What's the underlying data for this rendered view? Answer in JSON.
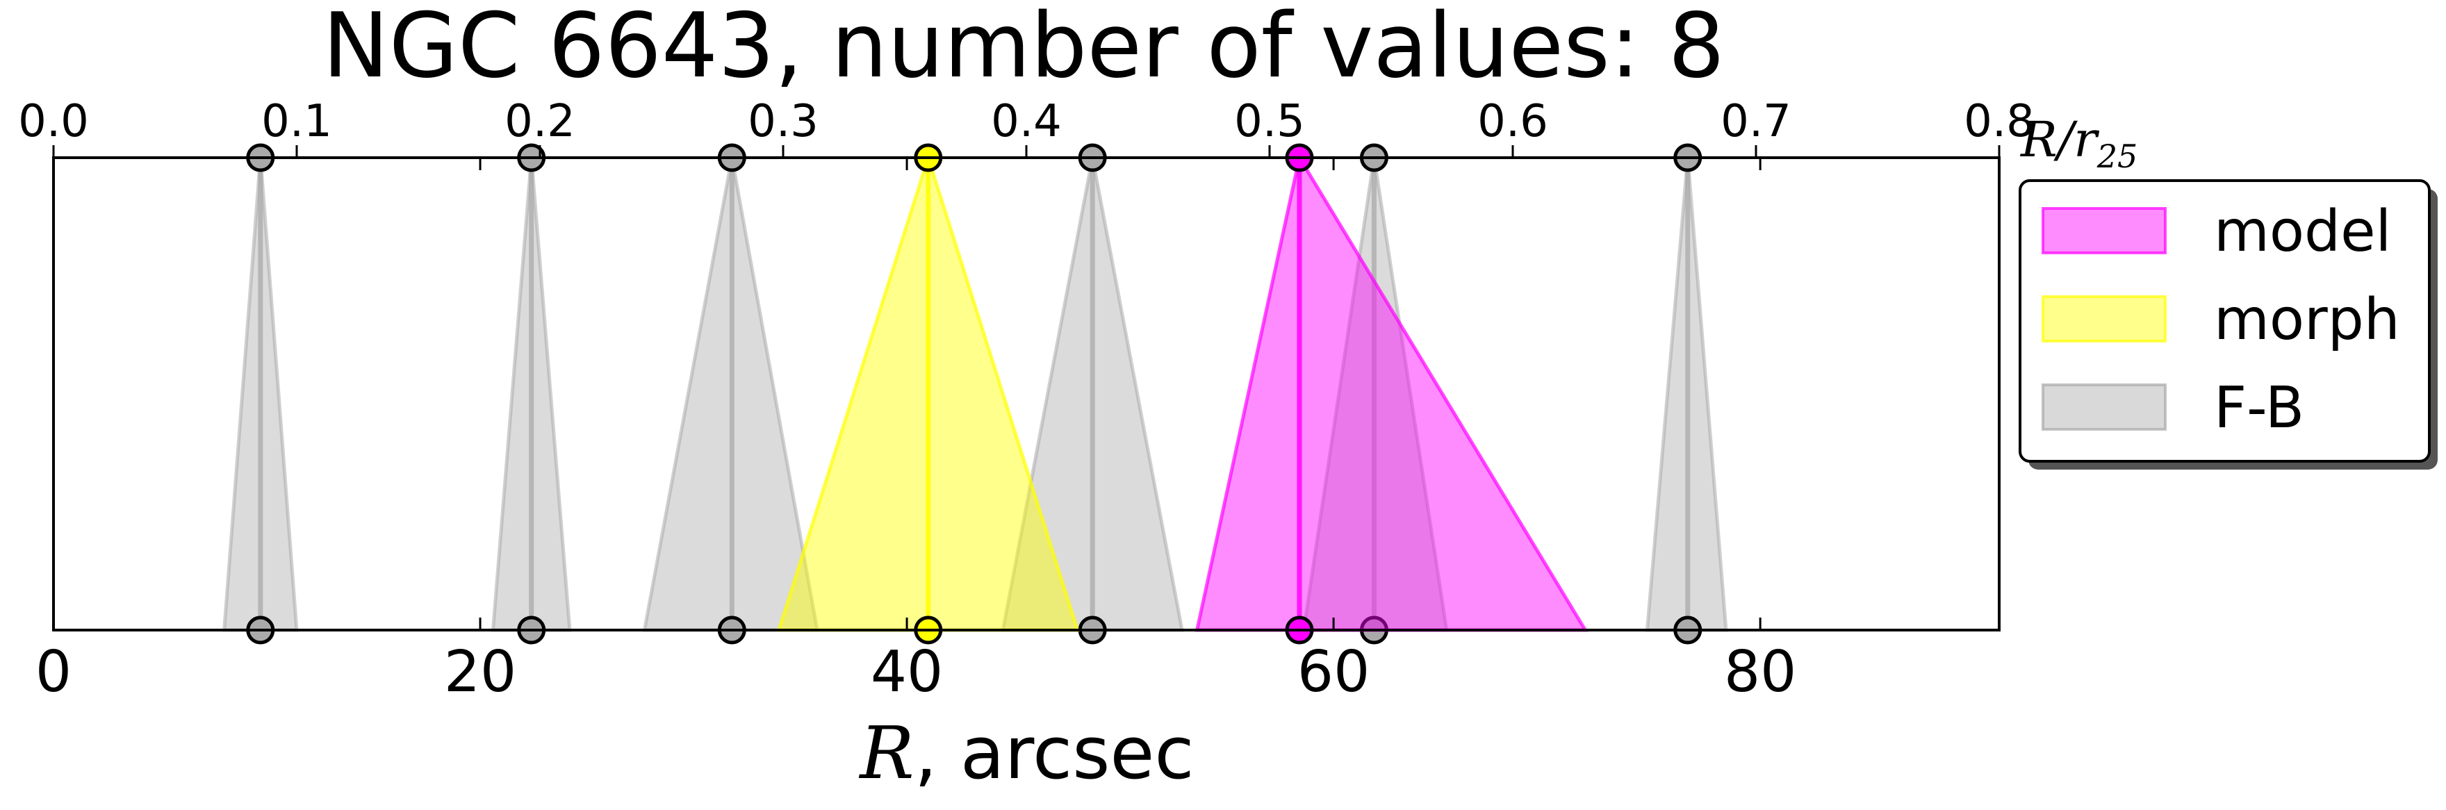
{
  "chart_data": {
    "type": "area",
    "title": "NGC 6643, number of values: 8",
    "xlabel_italic": "R",
    "xlabel_rest": ", arcsec",
    "xlim": [
      0,
      91.2
    ],
    "xticks": [
      {
        "value": 0,
        "label": "0"
      },
      {
        "value": 20,
        "label": "20"
      },
      {
        "value": 40,
        "label": "40"
      },
      {
        "value": 60,
        "label": "60"
      },
      {
        "value": 80,
        "label": "80"
      }
    ],
    "top_axis": {
      "label_main": "R/r",
      "label_sub": "25",
      "xlim": [
        0,
        0.8
      ],
      "ticks": [
        {
          "value": 0.0,
          "label": "0.0"
        },
        {
          "value": 0.1,
          "label": "0.1"
        },
        {
          "value": 0.2,
          "label": "0.2"
        },
        {
          "value": 0.3,
          "label": "0.3"
        },
        {
          "value": 0.4,
          "label": "0.4"
        },
        {
          "value": 0.5,
          "label": "0.5"
        },
        {
          "value": 0.6,
          "label": "0.6"
        },
        {
          "value": 0.7,
          "label": "0.7"
        },
        {
          "value": 0.8,
          "label": "0.8"
        }
      ]
    },
    "legend_position": "right",
    "legend": [
      {
        "label": "model",
        "color": "#ff00ff"
      },
      {
        "label": "morph",
        "color": "#ffff00"
      },
      {
        "label": "F-B",
        "color": "#aaaaaa"
      }
    ],
    "series": [
      {
        "name": "F-B",
        "color": "#aaaaaa",
        "center": 9.7,
        "left": 8.0,
        "right": 11.4
      },
      {
        "name": "F-B",
        "color": "#aaaaaa",
        "center": 22.4,
        "left": 20.6,
        "right": 24.2
      },
      {
        "name": "F-B",
        "color": "#aaaaaa",
        "center": 31.8,
        "left": 27.7,
        "right": 35.8
      },
      {
        "name": "F-B",
        "color": "#aaaaaa",
        "center": 48.7,
        "left": 44.5,
        "right": 52.9
      },
      {
        "name": "F-B",
        "color": "#aaaaaa",
        "center": 61.9,
        "left": 58.6,
        "right": 65.3
      },
      {
        "name": "F-B",
        "color": "#aaaaaa",
        "center": 76.6,
        "left": 74.7,
        "right": 78.4
      },
      {
        "name": "morph",
        "color": "#ffff00",
        "center": 41.0,
        "left": 34.0,
        "right": 48.0
      },
      {
        "name": "model",
        "color": "#ff00ff",
        "center": 58.4,
        "left": 53.6,
        "right": 71.8
      }
    ]
  },
  "colors": {
    "model": "#ff00ff",
    "morph": "#ffff00",
    "fb": "#aaaaaa"
  }
}
